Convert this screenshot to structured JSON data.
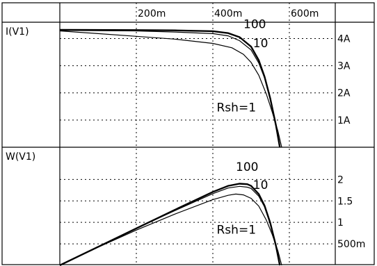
{
  "chart_data": {
    "type": "line",
    "xlim": [
      0,
      0.72
    ],
    "x_ticks": [
      {
        "value": 0.2,
        "label": "200m"
      },
      {
        "value": 0.4,
        "label": "400m"
      },
      {
        "value": 0.6,
        "label": "600m"
      }
    ],
    "panels": [
      {
        "name": "current",
        "label": "I(V1)",
        "ylim": [
          0,
          4.6
        ],
        "y_ticks": [
          {
            "value": 1,
            "label": "1A"
          },
          {
            "value": 2,
            "label": "2A"
          },
          {
            "value": 3,
            "label": "3A"
          },
          {
            "value": 4,
            "label": "4A"
          }
        ],
        "series": [
          {
            "name": "100",
            "style": "thick",
            "x": [
              0.0,
              0.2,
              0.3,
              0.4,
              0.44,
              0.47,
              0.5,
              0.52,
              0.535,
              0.55,
              0.565,
              0.575
            ],
            "y": [
              4.32,
              4.31,
              4.3,
              4.27,
              4.2,
              4.05,
              3.7,
              3.2,
              2.6,
              1.8,
              0.8,
              0.0
            ]
          },
          {
            "name": "10",
            "style": "thin",
            "x": [
              0.0,
              0.2,
              0.3,
              0.4,
              0.44,
              0.47,
              0.5,
              0.52,
              0.535,
              0.55,
              0.565,
              0.575
            ],
            "y": [
              4.3,
              4.28,
              4.24,
              4.18,
              4.1,
              3.92,
              3.58,
              3.1,
              2.55,
              1.75,
              0.8,
              0.0
            ]
          },
          {
            "name": "Rsh=1",
            "style": "thin",
            "x": [
              0.0,
              0.1,
              0.2,
              0.3,
              0.4,
              0.45,
              0.48,
              0.5,
              0.52,
              0.54,
              0.555,
              0.57,
              0.58
            ],
            "y": [
              4.28,
              4.18,
              4.08,
              3.98,
              3.82,
              3.66,
              3.42,
              3.12,
              2.65,
              1.95,
              1.3,
              0.6,
              0.0
            ]
          }
        ],
        "annotations": [
          {
            "text": "100",
            "x": 0.48,
            "y": 4.38
          },
          {
            "text": "10",
            "x": 0.505,
            "y": 3.68
          },
          {
            "text": "Rsh=1",
            "x": 0.41,
            "y": 1.32
          }
        ]
      },
      {
        "name": "power",
        "label": "W(V1)",
        "ylim": [
          0,
          2.75
        ],
        "y_ticks": [
          {
            "value": 0.5,
            "label": "500m"
          },
          {
            "value": 1.0,
            "label": "1"
          },
          {
            "value": 1.5,
            "label": "1.5"
          },
          {
            "value": 2.0,
            "label": "2"
          }
        ],
        "series": [
          {
            "name": "100",
            "style": "thick",
            "x": [
              0.0,
              0.1,
              0.2,
              0.3,
              0.4,
              0.44,
              0.47,
              0.49,
              0.5,
              0.52,
              0.535,
              0.55,
              0.565,
              0.575
            ],
            "y": [
              0.0,
              0.43,
              0.86,
              1.29,
              1.71,
              1.85,
              1.9,
              1.89,
              1.85,
              1.66,
              1.39,
              0.99,
              0.45,
              0.0
            ]
          },
          {
            "name": "10",
            "style": "thin",
            "x": [
              0.0,
              0.1,
              0.2,
              0.3,
              0.4,
              0.44,
              0.47,
              0.49,
              0.5,
              0.52,
              0.535,
              0.55,
              0.565,
              0.575
            ],
            "y": [
              0.0,
              0.43,
              0.86,
              1.27,
              1.67,
              1.8,
              1.84,
              1.82,
              1.79,
              1.61,
              1.36,
              0.96,
              0.45,
              0.0
            ]
          },
          {
            "name": "Rsh=1",
            "style": "thin",
            "x": [
              0.0,
              0.1,
              0.2,
              0.3,
              0.4,
              0.44,
              0.46,
              0.48,
              0.5,
              0.52,
              0.54,
              0.555,
              0.57,
              0.58
            ],
            "y": [
              0.0,
              0.42,
              0.82,
              1.19,
              1.53,
              1.63,
              1.66,
              1.64,
              1.56,
              1.38,
              1.05,
              0.72,
              0.34,
              0.0
            ]
          }
        ],
        "annotations": [
          {
            "text": "100",
            "x": 0.46,
            "y": 2.2
          },
          {
            "text": "10",
            "x": 0.505,
            "y": 1.78
          },
          {
            "text": "Rsh=1",
            "x": 0.41,
            "y": 0.74
          }
        ]
      }
    ]
  }
}
